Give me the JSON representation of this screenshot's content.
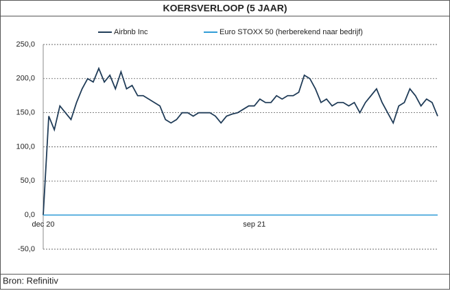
{
  "chart_data": {
    "type": "line",
    "title": "KOERSVERLOOP (5 JAAR)",
    "source": "Bron: Refinitiv",
    "categories": [
      "dec 20",
      null,
      null,
      null,
      null,
      null,
      null,
      null,
      null,
      null,
      null,
      null,
      null,
      null,
      null,
      null,
      null,
      null,
      null,
      null,
      null,
      null,
      null,
      null,
      null,
      null,
      null,
      null,
      null,
      null,
      null,
      null,
      null,
      null,
      null,
      null,
      null,
      null,
      "sep 21",
      null,
      null,
      null,
      null,
      null,
      null,
      null,
      null,
      null,
      null,
      null,
      null,
      null,
      null,
      null,
      null,
      null,
      null,
      null,
      null,
      null,
      null,
      null,
      null,
      null,
      null,
      null,
      null,
      null,
      null,
      null,
      null,
      null
    ],
    "series": [
      {
        "name": "Airbnb Inc",
        "color": "#1f3b57",
        "values": [
          0,
          145,
          125,
          160,
          150,
          140,
          165,
          185,
          200,
          195,
          215,
          195,
          205,
          185,
          210,
          185,
          190,
          175,
          175,
          170,
          165,
          160,
          140,
          135,
          140,
          150,
          150,
          145,
          150,
          150,
          150,
          145,
          135,
          145,
          148,
          150,
          155,
          160,
          160,
          170,
          165,
          165,
          175,
          170,
          175,
          175,
          180,
          205,
          200,
          185,
          165,
          170,
          160,
          165,
          165,
          160,
          165,
          150,
          165,
          175,
          185,
          165,
          150,
          135,
          160,
          165,
          185,
          175,
          160,
          170,
          165,
          145
        ]
      },
      {
        "name": "Euro STOXX 50 (herberekend naar bedrijf)",
        "color": "#2e9bd6",
        "values": [
          0,
          0,
          0,
          0,
          0,
          0,
          0,
          0,
          0,
          0,
          0,
          0,
          0,
          0,
          0,
          0,
          0,
          0,
          0,
          0,
          0,
          0,
          0,
          0,
          0,
          0,
          0,
          0,
          0,
          0,
          0,
          0,
          0,
          0,
          0,
          0,
          0,
          0,
          0,
          0,
          0,
          0,
          0,
          0,
          0,
          0,
          0,
          0,
          0,
          0,
          0,
          0,
          0,
          0,
          0,
          0,
          0,
          0,
          0,
          0,
          0,
          0,
          0,
          0,
          0,
          0,
          0,
          0,
          0,
          0,
          0,
          0
        ]
      }
    ],
    "ylim": [
      -50,
      250
    ],
    "yticks": [
      {
        "value": -50,
        "label": "-50,0"
      },
      {
        "value": 0,
        "label": "0,0"
      },
      {
        "value": 50,
        "label": "50,0"
      },
      {
        "value": 100,
        "label": "100,0"
      },
      {
        "value": 150,
        "label": "150,0"
      },
      {
        "value": 200,
        "label": "200,0"
      },
      {
        "value": 250,
        "label": "250,0"
      }
    ],
    "grid": true
  }
}
